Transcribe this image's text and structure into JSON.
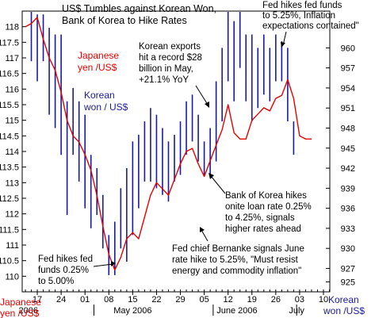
{
  "chart_data": {
    "type": "combo-line-and-hlc-bars",
    "title_lines": [
      "US$ Tumbles against Korean Won,",
      "Bank of Korea to Hike Rates"
    ],
    "left_axis": {
      "label_lines": [
        "Japanese",
        "yen /US$"
      ],
      "min": 109.5,
      "max": 118.5,
      "ticks": [
        110,
        110.5,
        111,
        111.5,
        112,
        112.5,
        113,
        113.5,
        114,
        114.5,
        115,
        115.5,
        116,
        116.5,
        117,
        117.5,
        118
      ],
      "tick_labels": [
        "110",
        "110.5",
        "111",
        "111.5",
        "112",
        "112.5",
        "113",
        "113.5",
        "114",
        "114.5",
        "115",
        "115.5",
        "116",
        "116.5",
        "117",
        "117.5",
        "118"
      ]
    },
    "right_axis": {
      "label_lines": [
        "Korean",
        "won /US$"
      ],
      "min": 923.5,
      "max": 965.5,
      "ticks": [
        925,
        927,
        930,
        933,
        936,
        939,
        942,
        945,
        948,
        951,
        954,
        957,
        960
      ],
      "tick_labels": [
        "925",
        "927",
        "930",
        "933",
        "936",
        "939",
        "942",
        "945",
        "948",
        "951",
        "954",
        "957",
        "960"
      ]
    },
    "x_axis": {
      "n_sessions": 52,
      "ticks": [
        {
          "i": 2,
          "label": "17"
        },
        {
          "i": 6,
          "label": "24"
        },
        {
          "i": 10,
          "label": "01"
        },
        {
          "i": 14,
          "label": "08"
        },
        {
          "i": 18,
          "label": "15"
        },
        {
          "i": 22,
          "label": "22"
        },
        {
          "i": 26,
          "label": "29"
        },
        {
          "i": 30,
          "label": "05"
        },
        {
          "i": 34,
          "label": "12"
        },
        {
          "i": 38,
          "label": "19"
        },
        {
          "i": 42,
          "label": "26"
        },
        {
          "i": 46,
          "label": "03"
        },
        {
          "i": 50,
          "label": "10"
        }
      ],
      "month_labels": [
        {
          "i": 0.5,
          "label": "2006"
        },
        {
          "i": 18,
          "label": "May 2006"
        },
        {
          "i": 35.5,
          "label": "June 2006"
        },
        {
          "i": 45.5,
          "label": "July"
        }
      ]
    },
    "series": [
      {
        "name": "Japanese yen /US$",
        "axis": "left",
        "kind": "line",
        "color": "#e60000",
        "values": [
          118.0,
          118.1,
          118.3,
          117.6,
          117.0,
          116.6,
          115.9,
          115.0,
          114.5,
          114.3,
          113.9,
          113.4,
          112.6,
          111.6,
          110.7,
          110.2,
          110.6,
          111.2,
          111.4,
          111.2,
          111.9,
          112.6,
          113.0,
          112.8,
          112.6,
          113.1,
          113.6,
          114.0,
          114.1,
          113.6,
          113.2,
          113.7,
          114.2,
          114.7,
          115.5,
          114.6,
          114.4,
          114.4,
          115.0,
          115.2,
          115.4,
          115.3,
          115.7,
          115.8,
          116.3,
          115.7,
          114.5,
          114.4,
          114.4
        ]
      },
      {
        "name": "Korean won / US$",
        "axis": "right",
        "kind": "hlc-bars",
        "color": "#1a1aa0",
        "bars": [
          {
            "i": 1,
            "h": 966,
            "l": 958
          },
          {
            "i": 2,
            "h": 965,
            "l": 955
          },
          {
            "i": 3,
            "h": 965,
            "l": 958
          },
          {
            "i": 4,
            "h": 963,
            "l": 950
          },
          {
            "i": 5,
            "h": 962,
            "l": 948
          },
          {
            "i": 6,
            "h": 962,
            "l": 944
          },
          {
            "i": 7,
            "h": 952,
            "l": 935
          },
          {
            "i": 8,
            "h": 954,
            "l": 944
          },
          {
            "i": 9,
            "h": 952,
            "l": 940
          },
          {
            "i": 10,
            "h": 950,
            "l": 936
          },
          {
            "i": 11,
            "h": 944,
            "l": 933
          },
          {
            "i": 12,
            "h": 942,
            "l": 935
          },
          {
            "i": 13,
            "h": 938,
            "l": 930
          },
          {
            "i": 14,
            "h": 932,
            "l": 926
          },
          {
            "i": 15,
            "h": 934,
            "l": 926
          },
          {
            "i": 16,
            "h": 939,
            "l": 930
          },
          {
            "i": 17,
            "h": 942,
            "l": 928
          },
          {
            "i": 18,
            "h": 946,
            "l": 932
          },
          {
            "i": 19,
            "h": 947,
            "l": 936
          },
          {
            "i": 20,
            "h": 949,
            "l": 940
          },
          {
            "i": 21,
            "h": 951,
            "l": 940
          },
          {
            "i": 22,
            "h": 950,
            "l": 939
          },
          {
            "i": 23,
            "h": 948,
            "l": 938
          },
          {
            "i": 24,
            "h": 946,
            "l": 937
          },
          {
            "i": 25,
            "h": 947,
            "l": 940
          },
          {
            "i": 26,
            "h": 949,
            "l": 941
          },
          {
            "i": 27,
            "h": 952,
            "l": 944
          },
          {
            "i": 28,
            "h": 953,
            "l": 946
          },
          {
            "i": 29,
            "h": 950,
            "l": 943
          },
          {
            "i": 30,
            "h": 946,
            "l": 941
          },
          {
            "i": 31,
            "h": 948,
            "l": 941
          },
          {
            "i": 32,
            "h": 955,
            "l": 943
          },
          {
            "i": 33,
            "h": 960,
            "l": 949
          },
          {
            "i": 34,
            "h": 966,
            "l": 955
          },
          {
            "i": 35,
            "h": 964,
            "l": 952
          },
          {
            "i": 36,
            "h": 966,
            "l": 957
          },
          {
            "i": 37,
            "h": 962,
            "l": 952
          },
          {
            "i": 38,
            "h": 962,
            "l": 949
          },
          {
            "i": 39,
            "h": 960,
            "l": 951
          },
          {
            "i": 40,
            "h": 962,
            "l": 953
          },
          {
            "i": 41,
            "h": 960,
            "l": 952
          },
          {
            "i": 42,
            "h": 962,
            "l": 955
          },
          {
            "i": 43,
            "h": 961,
            "l": 955
          },
          {
            "i": 44,
            "h": 960,
            "l": 949
          },
          {
            "i": 45,
            "h": 949,
            "l": 944
          }
        ]
      }
    ],
    "series_labels": {
      "yen_lines": [
        "Japanese",
        "yen /US$"
      ],
      "won_lines": [
        "Korean",
        "won / US$"
      ]
    },
    "annotations": [
      {
        "id": "fed-july",
        "lines": [
          "Fed hikes fed funds",
          "to 5.25%, Inflation",
          "expectations contained\""
        ]
      },
      {
        "id": "exports",
        "lines": [
          "Korean exports",
          "hit a record $28",
          "billion in May,",
          "+21.1% YoY"
        ]
      },
      {
        "id": "bok",
        "lines": [
          "Bank of Korea hikes",
          "onite loan rate 0.25%",
          "to 4.25%, signals",
          "higher rates ahead"
        ]
      },
      {
        "id": "bernanke",
        "lines": [
          "Fed chief Bernanke signals June",
          "rate hike to 5.25%, \"Must resist",
          "energy and commodity inflation\""
        ]
      },
      {
        "id": "fed-may",
        "lines": [
          "Fed hikes fed",
          "funds 0.25%",
          "to 5.00%"
        ]
      }
    ]
  }
}
